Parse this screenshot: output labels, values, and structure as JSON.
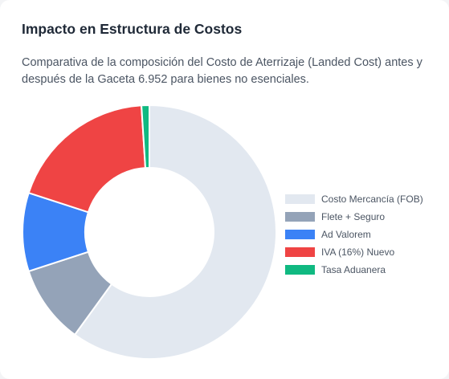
{
  "card": {
    "title": "Impacto en Estructura de Costos",
    "subtitle": "Comparativa de la composición del Costo de Aterrizaje (Landed Cost) antes y después de la Gaceta 6.952 para bienes no esenciales."
  },
  "chart_data": {
    "type": "pie",
    "donut": true,
    "legend_position": "right",
    "categories": [
      "Costo Mercancía (FOB)",
      "Flete + Seguro",
      "Ad Valorem",
      "IVA (16%) Nuevo",
      "Tasa Aduanera"
    ],
    "values": [
      60,
      10,
      10,
      19,
      1
    ],
    "colors": [
      "#e2e8f0",
      "#94a3b8",
      "#3b82f6",
      "#ef4444",
      "#10b981"
    ]
  }
}
